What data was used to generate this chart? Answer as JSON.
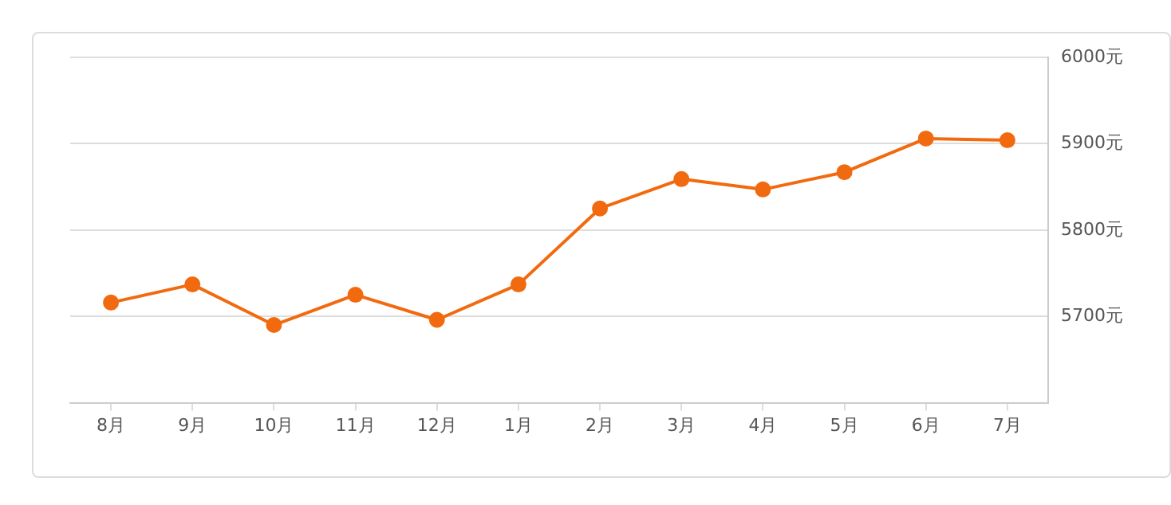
{
  "chart_data": {
    "type": "line",
    "categories": [
      "8月",
      "9月",
      "10月",
      "11月",
      "12月",
      "1月",
      "2月",
      "3月",
      "4月",
      "5月",
      "6月",
      "7月"
    ],
    "series": [
      {
        "color": "#f26a0f",
        "values": [
          5716,
          5737,
          5690,
          5725,
          5696,
          5737,
          5825,
          5859,
          5847,
          5867,
          5906,
          5904
        ]
      }
    ],
    "ylim": [
      5600,
      6000
    ],
    "yticks": [
      {
        "value": 5700,
        "label": "5700元"
      },
      {
        "value": 5800,
        "label": "5800元"
      },
      {
        "value": 5900,
        "label": "5900元"
      },
      {
        "value": 6000,
        "label": "6000元"
      }
    ],
    "grid": "y",
    "legend": false,
    "marker": "circle",
    "line_style": "solid"
  }
}
